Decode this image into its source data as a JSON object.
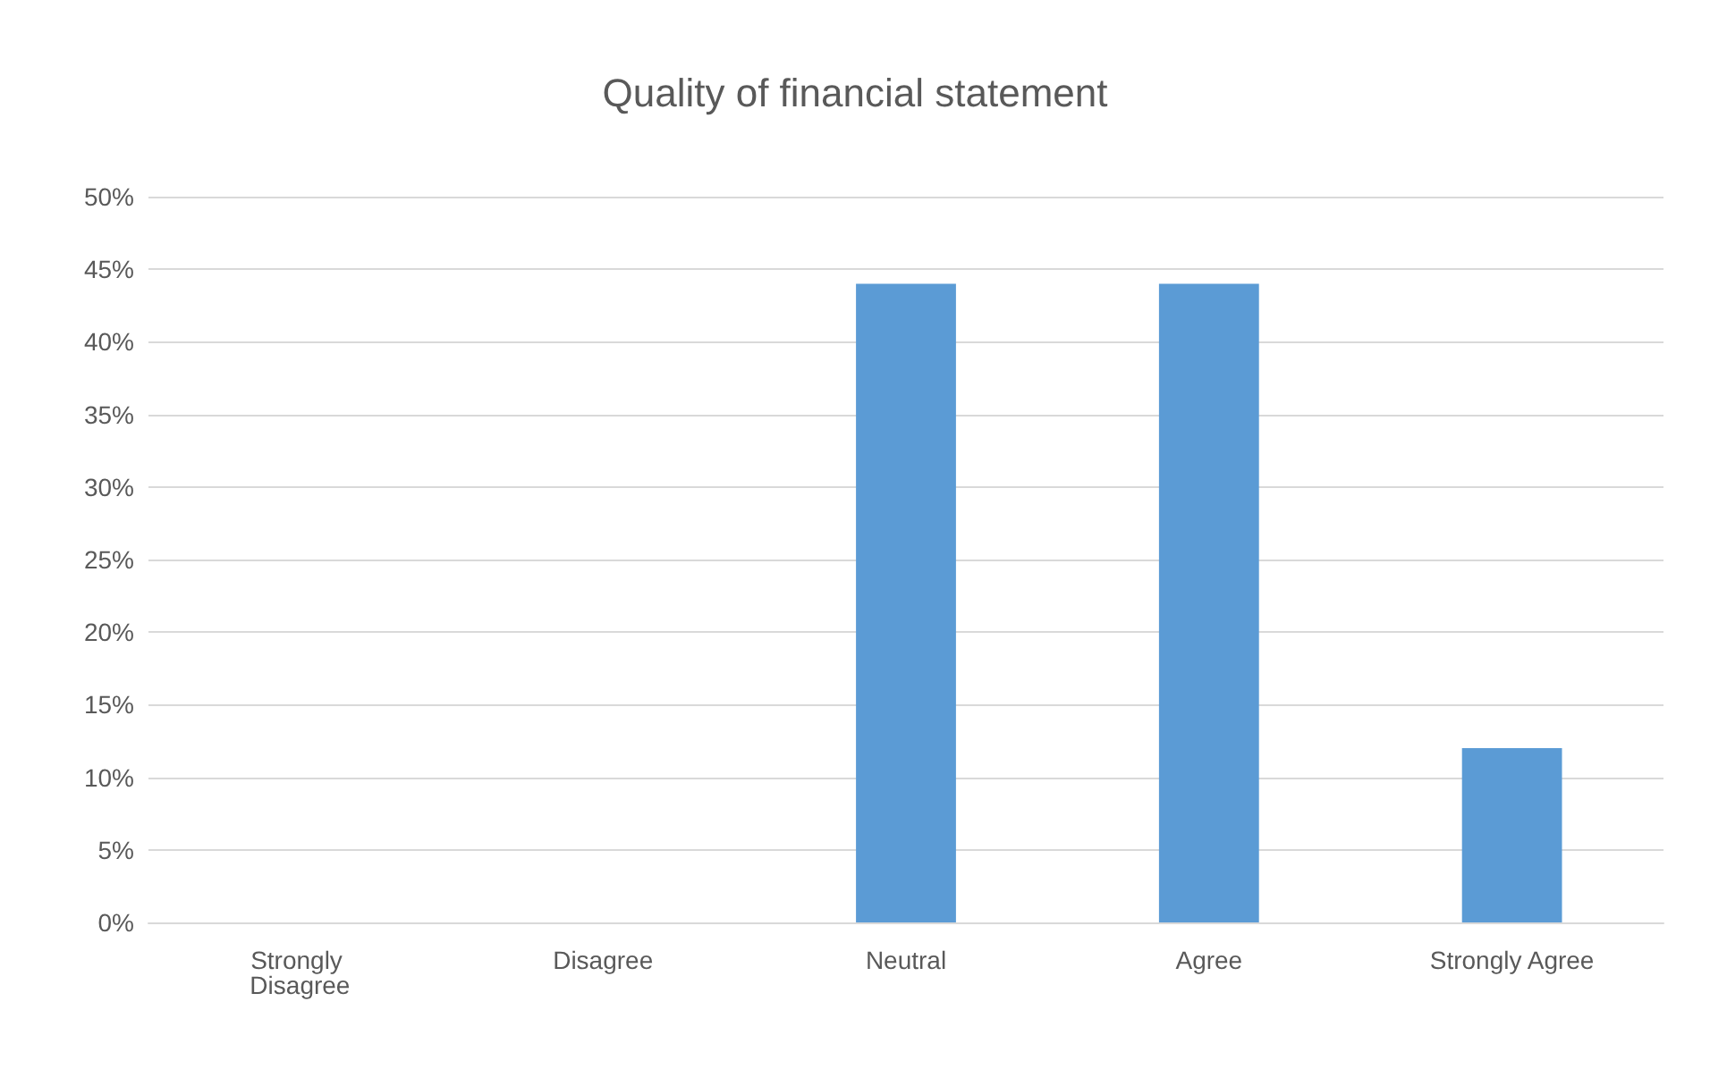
{
  "chart_data": {
    "type": "bar",
    "title": "Quality of financial statement",
    "categories": [
      "Strongly Disagree",
      "Disagree",
      "Neutral",
      "Agree",
      "Strongly Agree"
    ],
    "values": [
      0,
      0,
      44,
      44,
      12
    ],
    "color": "#5b9bd5",
    "ylim": [
      0,
      50
    ],
    "yticks": [
      {
        "value": 0,
        "label": "0%"
      },
      {
        "value": 5,
        "label": "5%"
      },
      {
        "value": 10,
        "label": "10%"
      },
      {
        "value": 15,
        "label": "15%"
      },
      {
        "value": 20,
        "label": "20%"
      },
      {
        "value": 25,
        "label": "25%"
      },
      {
        "value": 30,
        "label": "30%"
      },
      {
        "value": 35,
        "label": "35%"
      },
      {
        "value": 40,
        "label": "40%"
      },
      {
        "value": 45,
        "label": "45%"
      },
      {
        "value": 50,
        "label": "50%"
      }
    ],
    "grid": "y"
  }
}
